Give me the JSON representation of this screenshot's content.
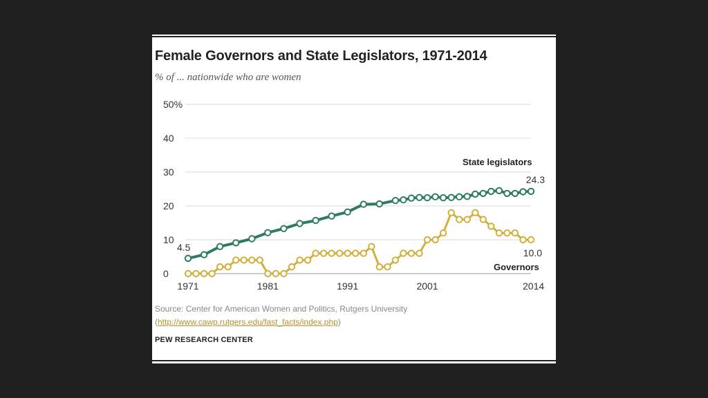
{
  "title": "Female Governors and State Legislators, 1971-2014",
  "subtitle": "% of ... nationwide who are women",
  "source": {
    "text": "Source: Center for American Women and Politics, Rutgers University",
    "link_open": "(",
    "link": "http://www.cawp.rutgers.edu/fast_facts/index.php",
    "link_close": ")"
  },
  "brand": "PEW RESEARCH CENTER",
  "colors": {
    "legislators": "#2e7b63",
    "governors": "#d4ae3b",
    "grid": "#d9d9d9",
    "text": "#222222"
  },
  "chart_data": {
    "type": "line",
    "title": "Female Governors and State Legislators, 1971-2014",
    "subtitle": "% of ... nationwide who are women",
    "xlabel": "",
    "ylabel": "",
    "ylim": [
      0,
      50
    ],
    "y_ticks": [
      "0",
      "10",
      "20",
      "30",
      "40",
      "50%"
    ],
    "x_ticks": [
      "1971",
      "1981",
      "1991",
      "2001",
      "2014"
    ],
    "x_tick_values": [
      1971,
      1981,
      1991,
      2001,
      2014
    ],
    "xlim": [
      1971,
      2014
    ],
    "grid": true,
    "series": [
      {
        "name": "State legislators",
        "end_label": "24.3",
        "start_label": "4.5",
        "points": [
          [
            1971,
            4.5
          ],
          [
            1973,
            5.6
          ],
          [
            1975,
            8.0
          ],
          [
            1977,
            9.1
          ],
          [
            1979,
            10.3
          ],
          [
            1981,
            12.1
          ],
          [
            1983,
            13.3
          ],
          [
            1985,
            14.8
          ],
          [
            1987,
            15.7
          ],
          [
            1989,
            17.0
          ],
          [
            1991,
            18.2
          ],
          [
            1993,
            20.5
          ],
          [
            1995,
            20.6
          ],
          [
            1997,
            21.6
          ],
          [
            1998,
            21.8
          ],
          [
            1999,
            22.3
          ],
          [
            2000,
            22.5
          ],
          [
            2001,
            22.4
          ],
          [
            2002,
            22.7
          ],
          [
            2003,
            22.4
          ],
          [
            2004,
            22.5
          ],
          [
            2005,
            22.7
          ],
          [
            2006,
            22.8
          ],
          [
            2007,
            23.5
          ],
          [
            2008,
            23.7
          ],
          [
            2009,
            24.3
          ],
          [
            2010,
            24.5
          ],
          [
            2011,
            23.7
          ],
          [
            2012,
            23.7
          ],
          [
            2013,
            24.2
          ],
          [
            2014,
            24.3
          ]
        ]
      },
      {
        "name": "Governors",
        "end_label": "10.0",
        "points": [
          [
            1971,
            0
          ],
          [
            1972,
            0
          ],
          [
            1973,
            0
          ],
          [
            1974,
            0
          ],
          [
            1975,
            2
          ],
          [
            1976,
            2
          ],
          [
            1977,
            4
          ],
          [
            1978,
            4
          ],
          [
            1979,
            4
          ],
          [
            1980,
            4
          ],
          [
            1981,
            0
          ],
          [
            1982,
            0
          ],
          [
            1983,
            0
          ],
          [
            1984,
            2
          ],
          [
            1985,
            4
          ],
          [
            1986,
            4
          ],
          [
            1987,
            6
          ],
          [
            1988,
            6
          ],
          [
            1989,
            6
          ],
          [
            1990,
            6
          ],
          [
            1991,
            6
          ],
          [
            1992,
            6
          ],
          [
            1993,
            6
          ],
          [
            1994,
            8
          ],
          [
            1995,
            2
          ],
          [
            1996,
            2
          ],
          [
            1997,
            4
          ],
          [
            1998,
            6
          ],
          [
            1999,
            6
          ],
          [
            2000,
            6
          ],
          [
            2001,
            10
          ],
          [
            2002,
            10
          ],
          [
            2003,
            12
          ],
          [
            2004,
            18
          ],
          [
            2005,
            16
          ],
          [
            2006,
            16
          ],
          [
            2007,
            18
          ],
          [
            2008,
            16
          ],
          [
            2009,
            14
          ],
          [
            2010,
            12
          ],
          [
            2011,
            12
          ],
          [
            2012,
            12
          ],
          [
            2013,
            10
          ],
          [
            2014,
            10
          ]
        ]
      }
    ]
  }
}
